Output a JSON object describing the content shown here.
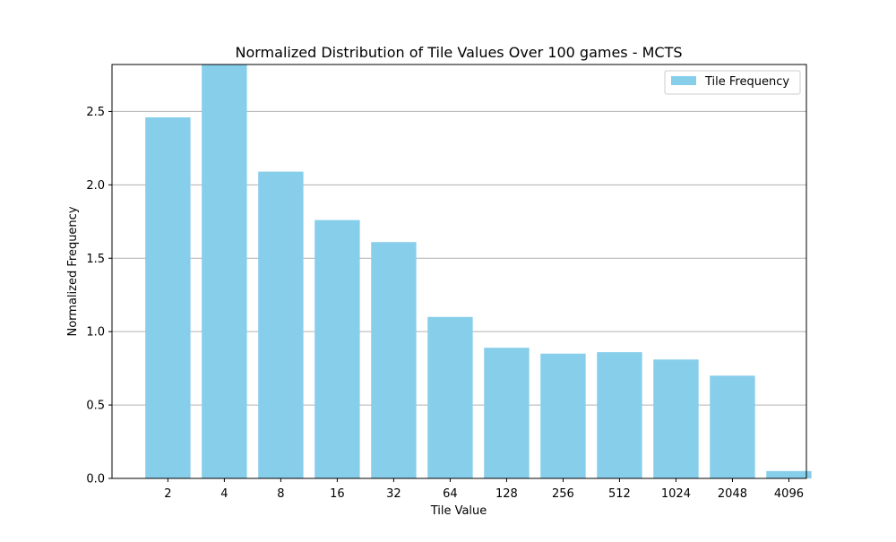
{
  "chart_data": {
    "type": "bar",
    "title": "Normalized Distribution of Tile Values Over 100 games - MCTS",
    "xlabel": "Tile Value",
    "ylabel": "Normalized Frequency",
    "categories": [
      "2",
      "4",
      "8",
      "16",
      "32",
      "64",
      "128",
      "256",
      "512",
      "1024",
      "2048",
      "4096"
    ],
    "series": [
      {
        "name": "Tile Frequency",
        "values": [
          2.46,
          2.82,
          2.09,
          1.76,
          1.61,
          1.1,
          0.89,
          0.85,
          0.86,
          0.81,
          0.7,
          0.05
        ]
      }
    ],
    "ylim": [
      0,
      2.82
    ],
    "yticks": [
      0.0,
      0.5,
      1.0,
      1.5,
      2.0,
      2.5
    ],
    "ytick_labels": [
      "0.0",
      "0.5",
      "1.0",
      "1.5",
      "2.0",
      "2.5"
    ],
    "grid": "horizontal",
    "legend_position": "top-right",
    "bar_color": "#87CEEB",
    "grid_color": "#b0b0b0"
  }
}
